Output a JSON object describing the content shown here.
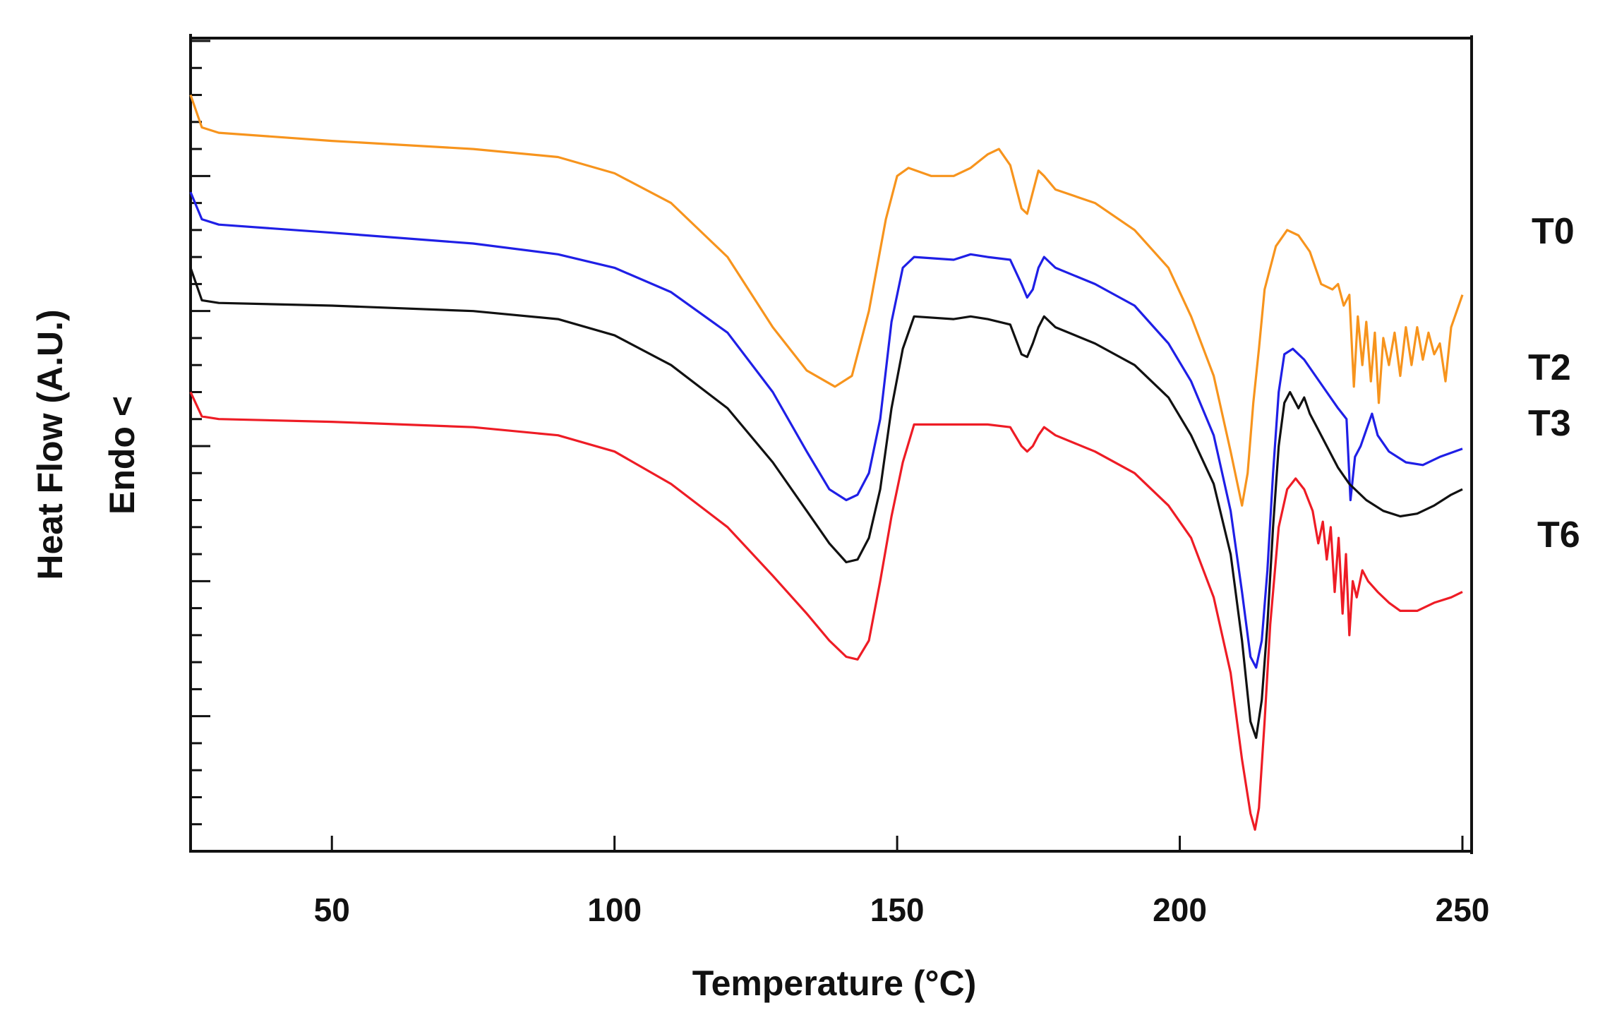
{
  "chart_data": {
    "type": "line",
    "title": "",
    "xlabel": "Temperature (°C)",
    "ylabel": "Heat Flow  (A.U.)",
    "ylabel2": "Endo <",
    "xlim": [
      25,
      250
    ],
    "ylim": [
      -14,
      1
    ],
    "xticks": [
      50,
      100,
      150,
      200,
      250
    ],
    "xtick_labels": [
      "50",
      "100",
      "150",
      "200",
      "250"
    ],
    "grid": false,
    "legend_position": "right",
    "series": [
      {
        "name": "T0",
        "color": "#f7941d",
        "points": [
          [
            25,
            0
          ],
          [
            27,
            -0.6
          ],
          [
            30,
            -0.7
          ],
          [
            50,
            -0.85
          ],
          [
            75,
            -1.0
          ],
          [
            90,
            -1.15
          ],
          [
            100,
            -1.45
          ],
          [
            110,
            -2.0
          ],
          [
            120,
            -3.0
          ],
          [
            128,
            -4.3
          ],
          [
            134,
            -5.1
          ],
          [
            139,
            -5.4
          ],
          [
            142,
            -5.2
          ],
          [
            145,
            -4.0
          ],
          [
            148,
            -2.3
          ],
          [
            150,
            -1.5
          ],
          [
            152,
            -1.35
          ],
          [
            156,
            -1.5
          ],
          [
            160,
            -1.5
          ],
          [
            163,
            -1.35
          ],
          [
            166,
            -1.1
          ],
          [
            168,
            -1.0
          ],
          [
            170,
            -1.3
          ],
          [
            172,
            -2.1
          ],
          [
            173,
            -2.2
          ],
          [
            174,
            -1.8
          ],
          [
            175,
            -1.4
          ],
          [
            176,
            -1.5
          ],
          [
            178,
            -1.75
          ],
          [
            185,
            -2.0
          ],
          [
            192,
            -2.5
          ],
          [
            198,
            -3.2
          ],
          [
            202,
            -4.1
          ],
          [
            206,
            -5.2
          ],
          [
            209,
            -6.6
          ],
          [
            211,
            -7.6
          ],
          [
            212,
            -7.0
          ],
          [
            213,
            -5.7
          ],
          [
            214,
            -4.7
          ],
          [
            215,
            -3.6
          ],
          [
            217,
            -2.8
          ],
          [
            219,
            -2.5
          ],
          [
            221,
            -2.6
          ],
          [
            223,
            -2.9
          ],
          [
            225,
            -3.5
          ],
          [
            227,
            -3.6
          ],
          [
            228,
            -3.5
          ],
          [
            229,
            -3.9
          ],
          [
            230,
            -3.7
          ],
          [
            230.8,
            -5.4
          ],
          [
            231.5,
            -4.1
          ],
          [
            232.3,
            -5.0
          ],
          [
            233,
            -4.2
          ],
          [
            233.8,
            -5.3
          ],
          [
            234.5,
            -4.4
          ],
          [
            235.2,
            -5.7
          ],
          [
            236,
            -4.5
          ],
          [
            237,
            -5.0
          ],
          [
            238,
            -4.4
          ],
          [
            239,
            -5.2
          ],
          [
            240,
            -4.3
          ],
          [
            241,
            -5.0
          ],
          [
            242,
            -4.3
          ],
          [
            243,
            -4.9
          ],
          [
            244,
            -4.4
          ],
          [
            245,
            -4.8
          ],
          [
            246,
            -4.6
          ],
          [
            247,
            -5.3
          ],
          [
            248,
            -4.3
          ],
          [
            249,
            -4.0
          ],
          [
            250,
            -3.7
          ]
        ]
      },
      {
        "name": "T2",
        "color": "#1f1fe6",
        "points": [
          [
            25,
            -1.8
          ],
          [
            27,
            -2.3
          ],
          [
            30,
            -2.4
          ],
          [
            50,
            -2.55
          ],
          [
            75,
            -2.75
          ],
          [
            90,
            -2.95
          ],
          [
            100,
            -3.2
          ],
          [
            110,
            -3.65
          ],
          [
            120,
            -4.4
          ],
          [
            128,
            -5.5
          ],
          [
            134,
            -6.6
          ],
          [
            138,
            -7.3
          ],
          [
            141,
            -7.5
          ],
          [
            143,
            -7.4
          ],
          [
            145,
            -7.0
          ],
          [
            147,
            -6.0
          ],
          [
            149,
            -4.2
          ],
          [
            151,
            -3.2
          ],
          [
            153,
            -3.0
          ],
          [
            160,
            -3.05
          ],
          [
            163,
            -2.95
          ],
          [
            166,
            -3.0
          ],
          [
            170,
            -3.05
          ],
          [
            172,
            -3.5
          ],
          [
            173,
            -3.75
          ],
          [
            174,
            -3.6
          ],
          [
            175,
            -3.2
          ],
          [
            176,
            -3.0
          ],
          [
            178,
            -3.2
          ],
          [
            185,
            -3.5
          ],
          [
            192,
            -3.9
          ],
          [
            198,
            -4.6
          ],
          [
            202,
            -5.3
          ],
          [
            206,
            -6.3
          ],
          [
            209,
            -7.7
          ],
          [
            211,
            -9.2
          ],
          [
            212.5,
            -10.4
          ],
          [
            213.5,
            -10.6
          ],
          [
            214.5,
            -10.1
          ],
          [
            215.5,
            -8.8
          ],
          [
            216.5,
            -7.0
          ],
          [
            217.5,
            -5.5
          ],
          [
            218.5,
            -4.8
          ],
          [
            220,
            -4.7
          ],
          [
            222,
            -4.9
          ],
          [
            224,
            -5.2
          ],
          [
            226,
            -5.5
          ],
          [
            228,
            -5.8
          ],
          [
            229.5,
            -6.0
          ],
          [
            230.2,
            -7.5
          ],
          [
            231,
            -6.7
          ],
          [
            232,
            -6.5
          ],
          [
            233,
            -6.2
          ],
          [
            234,
            -5.9
          ],
          [
            235,
            -6.3
          ],
          [
            237,
            -6.6
          ],
          [
            240,
            -6.8
          ],
          [
            243,
            -6.85
          ],
          [
            246,
            -6.7
          ],
          [
            250,
            -6.55
          ]
        ]
      },
      {
        "name": "T3",
        "color": "#111111",
        "points": [
          [
            25,
            -3.2
          ],
          [
            27,
            -3.8
          ],
          [
            30,
            -3.85
          ],
          [
            50,
            -3.9
          ],
          [
            75,
            -4.0
          ],
          [
            90,
            -4.15
          ],
          [
            100,
            -4.45
          ],
          [
            110,
            -5.0
          ],
          [
            120,
            -5.8
          ],
          [
            128,
            -6.8
          ],
          [
            134,
            -7.7
          ],
          [
            138,
            -8.3
          ],
          [
            141,
            -8.65
          ],
          [
            143,
            -8.6
          ],
          [
            145,
            -8.2
          ],
          [
            147,
            -7.3
          ],
          [
            149,
            -5.8
          ],
          [
            151,
            -4.7
          ],
          [
            153,
            -4.1
          ],
          [
            160,
            -4.15
          ],
          [
            163,
            -4.1
          ],
          [
            166,
            -4.15
          ],
          [
            170,
            -4.25
          ],
          [
            172,
            -4.8
          ],
          [
            173,
            -4.85
          ],
          [
            174,
            -4.6
          ],
          [
            175,
            -4.3
          ],
          [
            176,
            -4.1
          ],
          [
            178,
            -4.3
          ],
          [
            185,
            -4.6
          ],
          [
            192,
            -5.0
          ],
          [
            198,
            -5.6
          ],
          [
            202,
            -6.3
          ],
          [
            206,
            -7.2
          ],
          [
            209,
            -8.5
          ],
          [
            211,
            -10.1
          ],
          [
            212.5,
            -11.6
          ],
          [
            213.5,
            -11.9
          ],
          [
            214.5,
            -11.2
          ],
          [
            215.5,
            -9.8
          ],
          [
            216.5,
            -8.0
          ],
          [
            217.5,
            -6.5
          ],
          [
            218.5,
            -5.7
          ],
          [
            219.5,
            -5.5
          ],
          [
            221,
            -5.8
          ],
          [
            222,
            -5.6
          ],
          [
            223,
            -5.9
          ],
          [
            224.5,
            -6.2
          ],
          [
            226,
            -6.5
          ],
          [
            228,
            -6.9
          ],
          [
            230,
            -7.2
          ],
          [
            233,
            -7.5
          ],
          [
            236,
            -7.7
          ],
          [
            239,
            -7.8
          ],
          [
            242,
            -7.75
          ],
          [
            245,
            -7.6
          ],
          [
            248,
            -7.4
          ],
          [
            250,
            -7.3
          ]
        ]
      },
      {
        "name": "T6",
        "color": "#ee1c25",
        "points": [
          [
            25,
            -5.5
          ],
          [
            27,
            -5.95
          ],
          [
            30,
            -6.0
          ],
          [
            50,
            -6.05
          ],
          [
            75,
            -6.15
          ],
          [
            90,
            -6.3
          ],
          [
            100,
            -6.6
          ],
          [
            110,
            -7.2
          ],
          [
            120,
            -8.0
          ],
          [
            128,
            -8.9
          ],
          [
            134,
            -9.6
          ],
          [
            138,
            -10.1
          ],
          [
            141,
            -10.4
          ],
          [
            143,
            -10.45
          ],
          [
            145,
            -10.1
          ],
          [
            147,
            -9.0
          ],
          [
            149,
            -7.8
          ],
          [
            151,
            -6.8
          ],
          [
            153,
            -6.1
          ],
          [
            160,
            -6.1
          ],
          [
            166,
            -6.1
          ],
          [
            170,
            -6.15
          ],
          [
            172,
            -6.5
          ],
          [
            173,
            -6.6
          ],
          [
            174,
            -6.5
          ],
          [
            175,
            -6.3
          ],
          [
            176,
            -6.15
          ],
          [
            178,
            -6.3
          ],
          [
            185,
            -6.6
          ],
          [
            192,
            -7.0
          ],
          [
            198,
            -7.6
          ],
          [
            202,
            -8.2
          ],
          [
            206,
            -9.3
          ],
          [
            209,
            -10.7
          ],
          [
            211,
            -12.3
          ],
          [
            212.5,
            -13.3
          ],
          [
            213.3,
            -13.6
          ],
          [
            214,
            -13.2
          ],
          [
            215,
            -11.6
          ],
          [
            216,
            -9.8
          ],
          [
            217.5,
            -8.0
          ],
          [
            219,
            -7.3
          ],
          [
            220.5,
            -7.1
          ],
          [
            222,
            -7.3
          ],
          [
            223.5,
            -7.7
          ],
          [
            224.5,
            -8.3
          ],
          [
            225.3,
            -7.9
          ],
          [
            226,
            -8.6
          ],
          [
            226.7,
            -8.0
          ],
          [
            227.4,
            -9.2
          ],
          [
            228.1,
            -8.2
          ],
          [
            228.8,
            -9.6
          ],
          [
            229.4,
            -8.5
          ],
          [
            230,
            -10.0
          ],
          [
            230.6,
            -9.0
          ],
          [
            231.3,
            -9.3
          ],
          [
            232.3,
            -8.8
          ],
          [
            233.3,
            -9.0
          ],
          [
            235,
            -9.2
          ],
          [
            237,
            -9.4
          ],
          [
            239,
            -9.55
          ],
          [
            242,
            -9.55
          ],
          [
            245,
            -9.4
          ],
          [
            248,
            -9.3
          ],
          [
            250,
            -9.2
          ]
        ]
      }
    ]
  }
}
